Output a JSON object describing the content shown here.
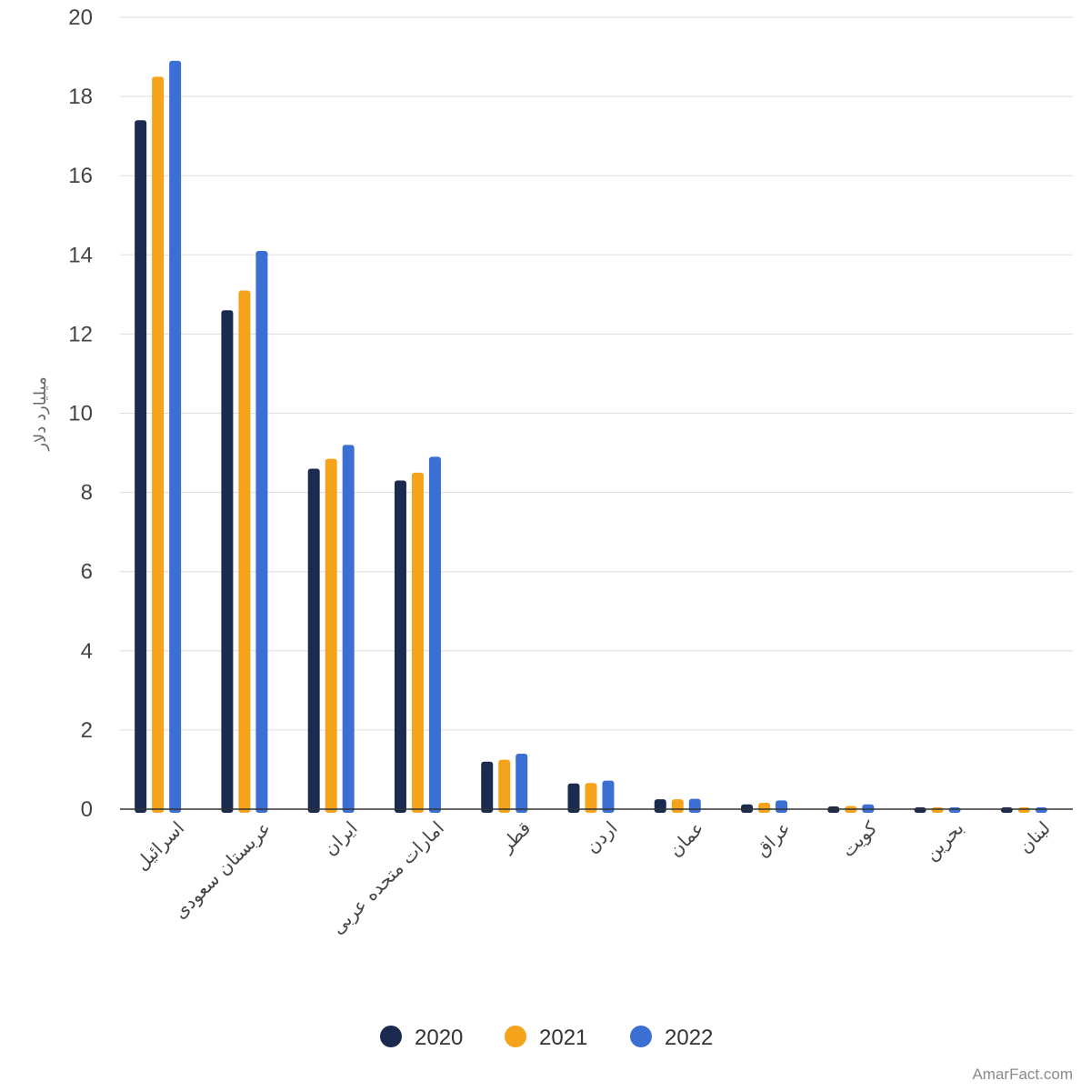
{
  "chart_data": {
    "type": "bar",
    "title": "",
    "xlabel": "",
    "ylabel": "میلیارد دلار",
    "ylim": [
      0,
      20
    ],
    "yticks": [
      0,
      2,
      4,
      6,
      8,
      10,
      12,
      14,
      16,
      18,
      20
    ],
    "grid": true,
    "legend_position": "bottom",
    "categories": [
      "اسرائیل",
      "عربستان سعودی",
      "ایران",
      "امارات متحده عربی",
      "قطر",
      "اردن",
      "عمان",
      "عراق",
      "کویت",
      "بحرین",
      "لبنان"
    ],
    "series": [
      {
        "name": "2020",
        "color": "#1b2b4f",
        "values": [
          17.4,
          12.6,
          8.6,
          8.3,
          1.2,
          0.65,
          0.25,
          0.12,
          0.07,
          0.03,
          0.03
        ]
      },
      {
        "name": "2021",
        "color": "#f5a31a",
        "values": [
          18.5,
          13.1,
          8.85,
          8.5,
          1.25,
          0.66,
          0.25,
          0.16,
          0.08,
          0.03,
          0.03
        ]
      },
      {
        "name": "2022",
        "color": "#3b6fd4",
        "values": [
          18.9,
          14.1,
          9.2,
          8.9,
          1.4,
          0.72,
          0.26,
          0.22,
          0.12,
          0.03,
          0.03
        ]
      }
    ]
  },
  "watermark": "AmarFact.com"
}
